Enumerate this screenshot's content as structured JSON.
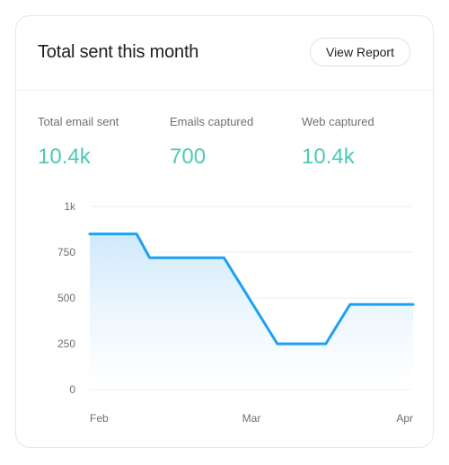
{
  "header": {
    "title": "Total sent this month",
    "view_report_label": "View Report"
  },
  "stats": [
    {
      "label": "Total email sent",
      "value": "10.4k"
    },
    {
      "label": "Emails captured",
      "value": "700"
    },
    {
      "label": "Web captured",
      "value": "10.4k"
    }
  ],
  "colors": {
    "line": "#1da1f2",
    "stat_value": "#4fc9b6"
  },
  "chart_data": {
    "type": "area",
    "x": [
      0,
      0.29,
      0.37,
      0.83,
      1.16,
      1.46,
      1.61,
      2.0
    ],
    "y": [
      850,
      850,
      720,
      720,
      250,
      250,
      465,
      465
    ],
    "x_ticks": [
      0,
      1,
      2
    ],
    "x_tick_labels": [
      "Feb",
      "Mar",
      "Apr"
    ],
    "y_ticks": [
      0,
      250,
      500,
      750,
      1000
    ],
    "y_tick_labels": [
      "0",
      "250",
      "500",
      "750",
      "1k"
    ],
    "ylim": [
      0,
      1000
    ],
    "xlim": [
      0,
      2
    ],
    "grid": true
  }
}
